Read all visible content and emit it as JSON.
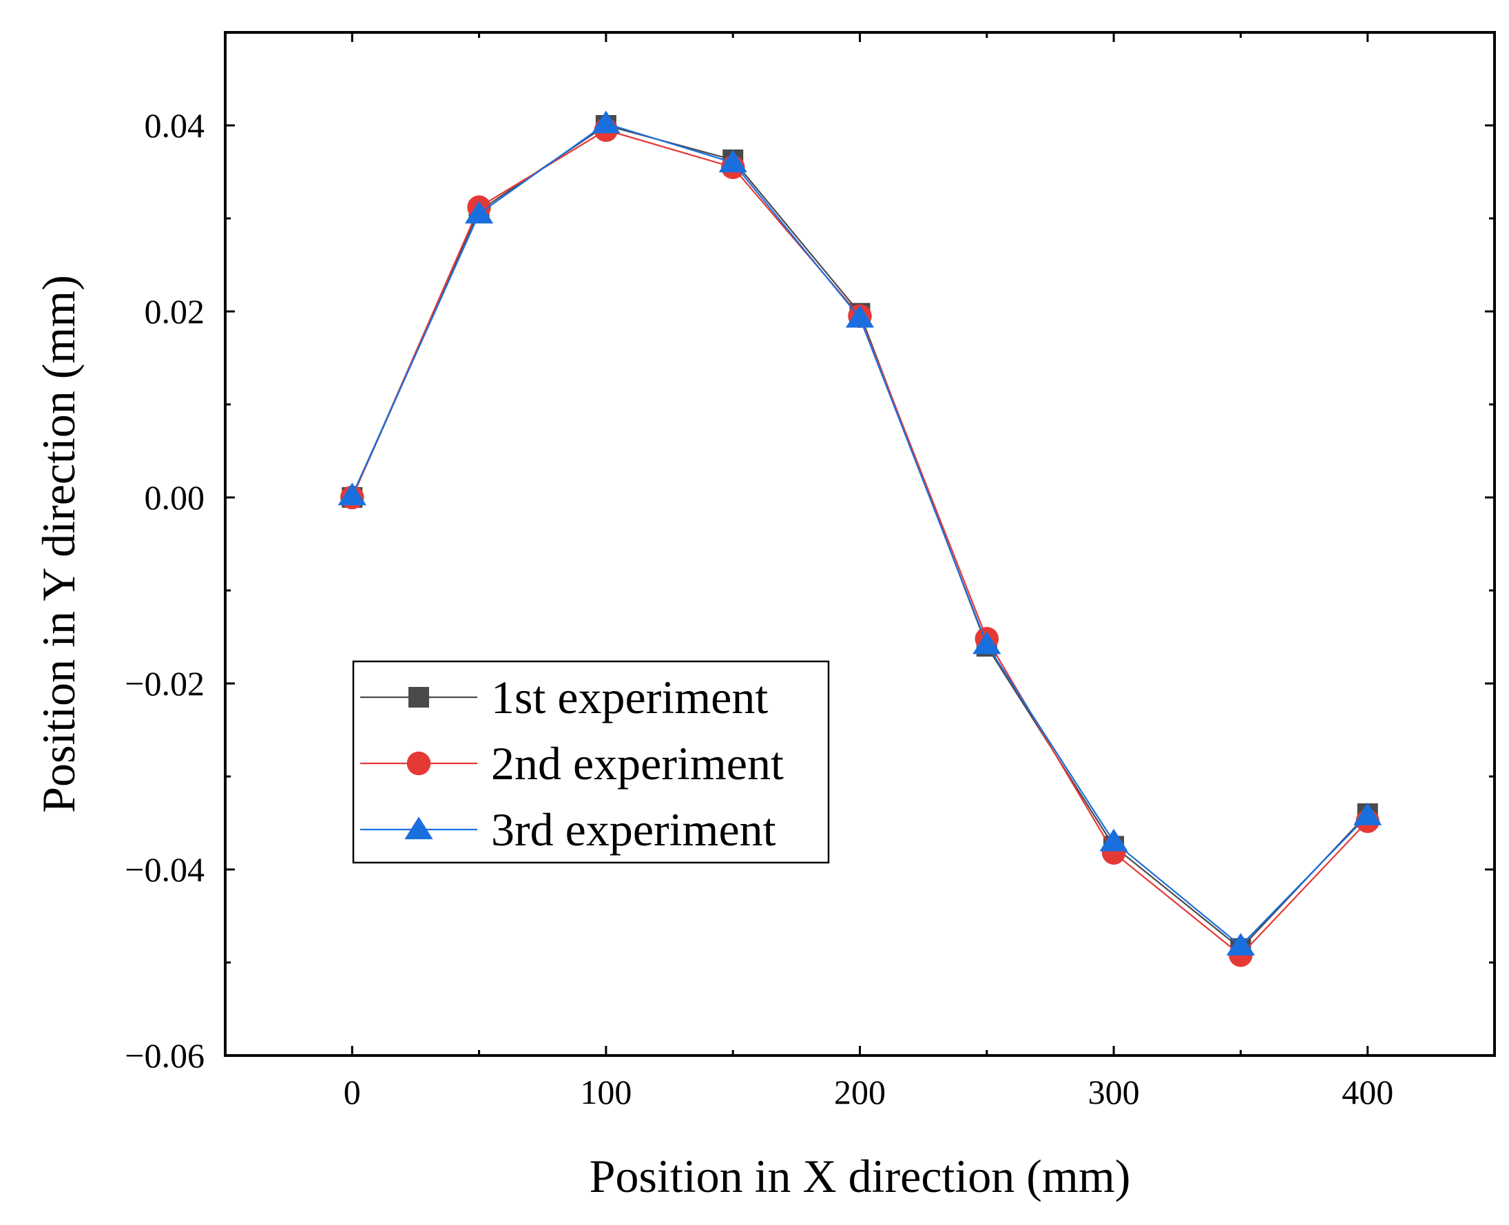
{
  "chart_data": {
    "type": "line",
    "title": "",
    "xlabel": "Position in X direction (mm)",
    "ylabel": "Position in Y direction (mm)",
    "xlim": [
      -50,
      450
    ],
    "ylim": [
      -0.06,
      0.05
    ],
    "x_ticks": [
      0,
      100,
      200,
      300,
      400
    ],
    "x_tick_labels": [
      "0",
      "100",
      "200",
      "300",
      "400"
    ],
    "y_ticks": [
      -0.06,
      -0.04,
      -0.02,
      0.0,
      0.02,
      0.04
    ],
    "y_tick_labels": [
      "−0.06",
      "−0.04",
      "−0.02",
      "0.00",
      "0.02",
      "0.04"
    ],
    "grid": false,
    "legend_position": "lower-left",
    "x": [
      0,
      50,
      100,
      150,
      200,
      250,
      300,
      350,
      400
    ],
    "series": [
      {
        "name": "1st experiment",
        "color": "#4a4a4a",
        "marker": "square",
        "values": [
          0.0,
          0.0308,
          0.04,
          0.0363,
          0.0198,
          -0.016,
          -0.0375,
          -0.0485,
          -0.034
        ]
      },
      {
        "name": "2nd experiment",
        "color": "#e53935",
        "marker": "circle",
        "values": [
          0.0,
          0.0312,
          0.0395,
          0.0355,
          0.0195,
          -0.0152,
          -0.0382,
          -0.0492,
          -0.0348
        ]
      },
      {
        "name": "3rd experiment",
        "color": "#1a6fdf",
        "marker": "triangle",
        "values": [
          0.0002,
          0.0305,
          0.0402,
          0.036,
          0.0193,
          -0.0158,
          -0.037,
          -0.0482,
          -0.0342
        ]
      }
    ]
  }
}
